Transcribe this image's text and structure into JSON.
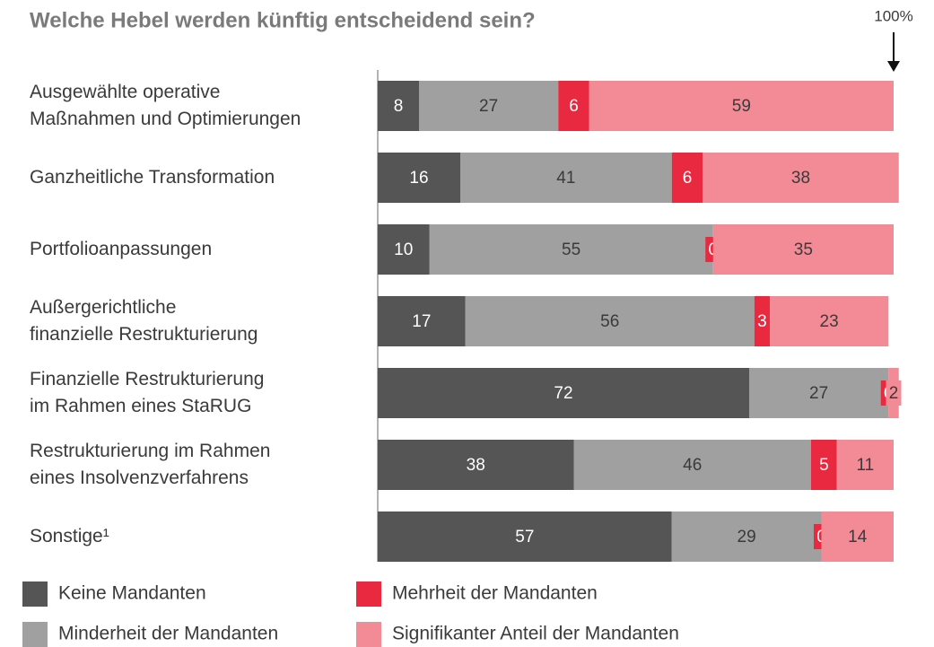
{
  "chart_data": {
    "type": "stacked_bar_horizontal",
    "title": "Welche Hebel werden künftig entscheidend sein?",
    "annotation": "100%",
    "categories": [
      "Ausgewählte operative\nMaßnahmen und Optimierungen",
      "Ganzheitliche Transformation",
      "Portfolioanpassungen",
      "Außergerichtliche\nfinanzielle Restrukturierung",
      "Finanzielle Restrukturierung\nim Rahmen eines StaRUG",
      "Restrukturierung im Rahmen\neines Insolvenzverfahrens",
      "Sonstige¹"
    ],
    "xlim": [
      0,
      100
    ],
    "series": [
      {
        "name": "Keine Mandanten",
        "color": "#555555",
        "values": [
          8,
          16,
          10,
          17,
          72,
          38,
          57
        ]
      },
      {
        "name": "Minderheit der Mandanten",
        "color": "#a0a0a0",
        "values": [
          27,
          41,
          55,
          56,
          27,
          46,
          29
        ]
      },
      {
        "name": "Mehrheit der Mandanten",
        "color": "#e8293f",
        "values": [
          6,
          6,
          0,
          3,
          0,
          5,
          0
        ]
      },
      {
        "name": "Signifikanter Anteil der Mandanten",
        "color": "#f28b96",
        "values": [
          59,
          38,
          35,
          23,
          2,
          11,
          14
        ]
      }
    ]
  }
}
